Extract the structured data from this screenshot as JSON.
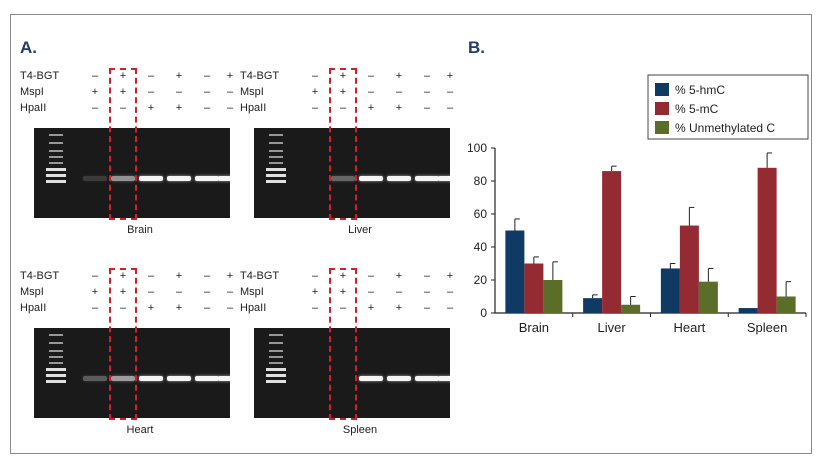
{
  "panel_a_label": "A.",
  "panel_b_label": "B.",
  "row_labels": [
    "T4-BGT",
    "MspI",
    "HpaII"
  ],
  "lane_signs": [
    [
      "–",
      "+",
      "–",
      "+",
      "–",
      "+"
    ],
    [
      "+",
      "+",
      "–",
      "–",
      "–",
      "–"
    ],
    [
      "–",
      "–",
      "+",
      "+",
      "–",
      "–"
    ]
  ],
  "gels": [
    {
      "tissue": "Brain",
      "band_intensity": [
        0.15,
        0.55,
        1,
        1,
        1,
        1
      ]
    },
    {
      "tissue": "Liver",
      "band_intensity": [
        0.0,
        0.35,
        1,
        1,
        1,
        1
      ]
    },
    {
      "tissue": "Heart",
      "band_intensity": [
        0.3,
        0.6,
        1,
        1,
        1,
        1
      ]
    },
    {
      "tissue": "Spleen",
      "band_intensity": [
        0.0,
        0.0,
        1,
        1,
        1,
        1
      ]
    }
  ],
  "colors": {
    "hmC": "#0e3a64",
    "mC": "#942a32",
    "unC": "#5a6e2a",
    "highlight": "#d0202a"
  },
  "chart_data": {
    "type": "bar",
    "categories": [
      "Brain",
      "Liver",
      "Heart",
      "Spleen"
    ],
    "series": [
      {
        "name": "% 5-hmC",
        "values": [
          50,
          9,
          27,
          3
        ],
        "errors": [
          7,
          2,
          3,
          0
        ]
      },
      {
        "name": "% 5-mC",
        "values": [
          30,
          86,
          53,
          88
        ],
        "errors": [
          4,
          3,
          11,
          9
        ]
      },
      {
        "name": "% Unmethylated C",
        "values": [
          20,
          5,
          19,
          10
        ],
        "errors": [
          11,
          5,
          8,
          9
        ]
      }
    ],
    "ylim": [
      0,
      100
    ],
    "yticks": [
      "0",
      "20",
      "40",
      "60",
      "80",
      "100"
    ],
    "legend_position": "top-right",
    "grid": false
  }
}
